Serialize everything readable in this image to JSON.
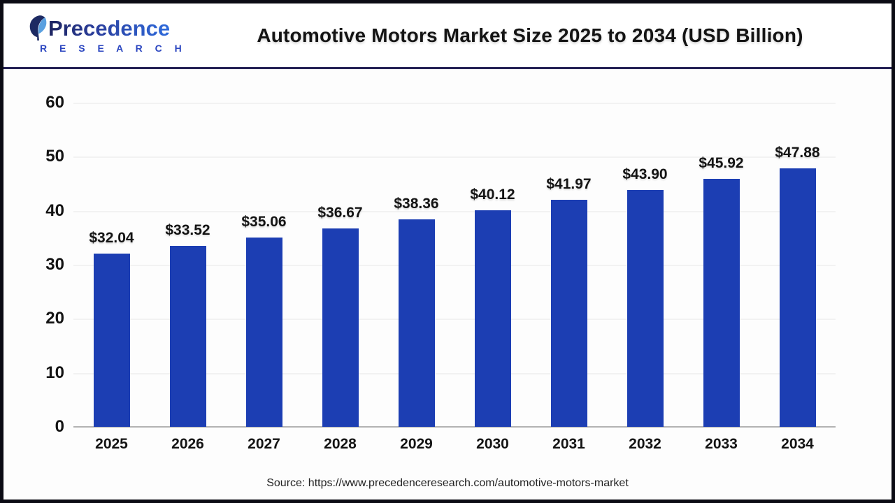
{
  "header": {
    "logo": {
      "brand": "Precedence",
      "sub_brand": "R E S E A R C H"
    },
    "title": "Automotive Motors Market Size 2025 to 2034 (USD Billion)"
  },
  "chart_data": {
    "type": "bar",
    "title": "Automotive Motors Market Size 2025 to 2034 (USD Billion)",
    "categories": [
      "2025",
      "2026",
      "2027",
      "2028",
      "2029",
      "2030",
      "2031",
      "2032",
      "2033",
      "2034"
    ],
    "values": [
      32.04,
      33.52,
      35.06,
      36.67,
      38.36,
      40.12,
      41.97,
      43.9,
      45.92,
      47.88
    ],
    "value_labels": [
      "$32.04",
      "$33.52",
      "$35.06",
      "$36.67",
      "$38.36",
      "$40.12",
      "$41.97",
      "$43.90",
      "$45.92",
      "$47.88"
    ],
    "xlabel": "",
    "ylabel": "",
    "ylim": [
      0,
      60
    ],
    "yticks": [
      0,
      10,
      20,
      30,
      40,
      50,
      60
    ],
    "grid": "faint-horizontal",
    "legend": "none",
    "bar_color": "#1c3eb3"
  },
  "footer": {
    "source": "Source: https://www.precedenceresearch.com/automotive-motors-market"
  },
  "colors": {
    "bar": "#1c3eb3",
    "brand_navy": "#1d2460",
    "brand_blue": "#2f6bdc",
    "frame_border": "#0b0b14",
    "header_separator": "#232054",
    "axis_baseline": "#b3b3b3"
  }
}
